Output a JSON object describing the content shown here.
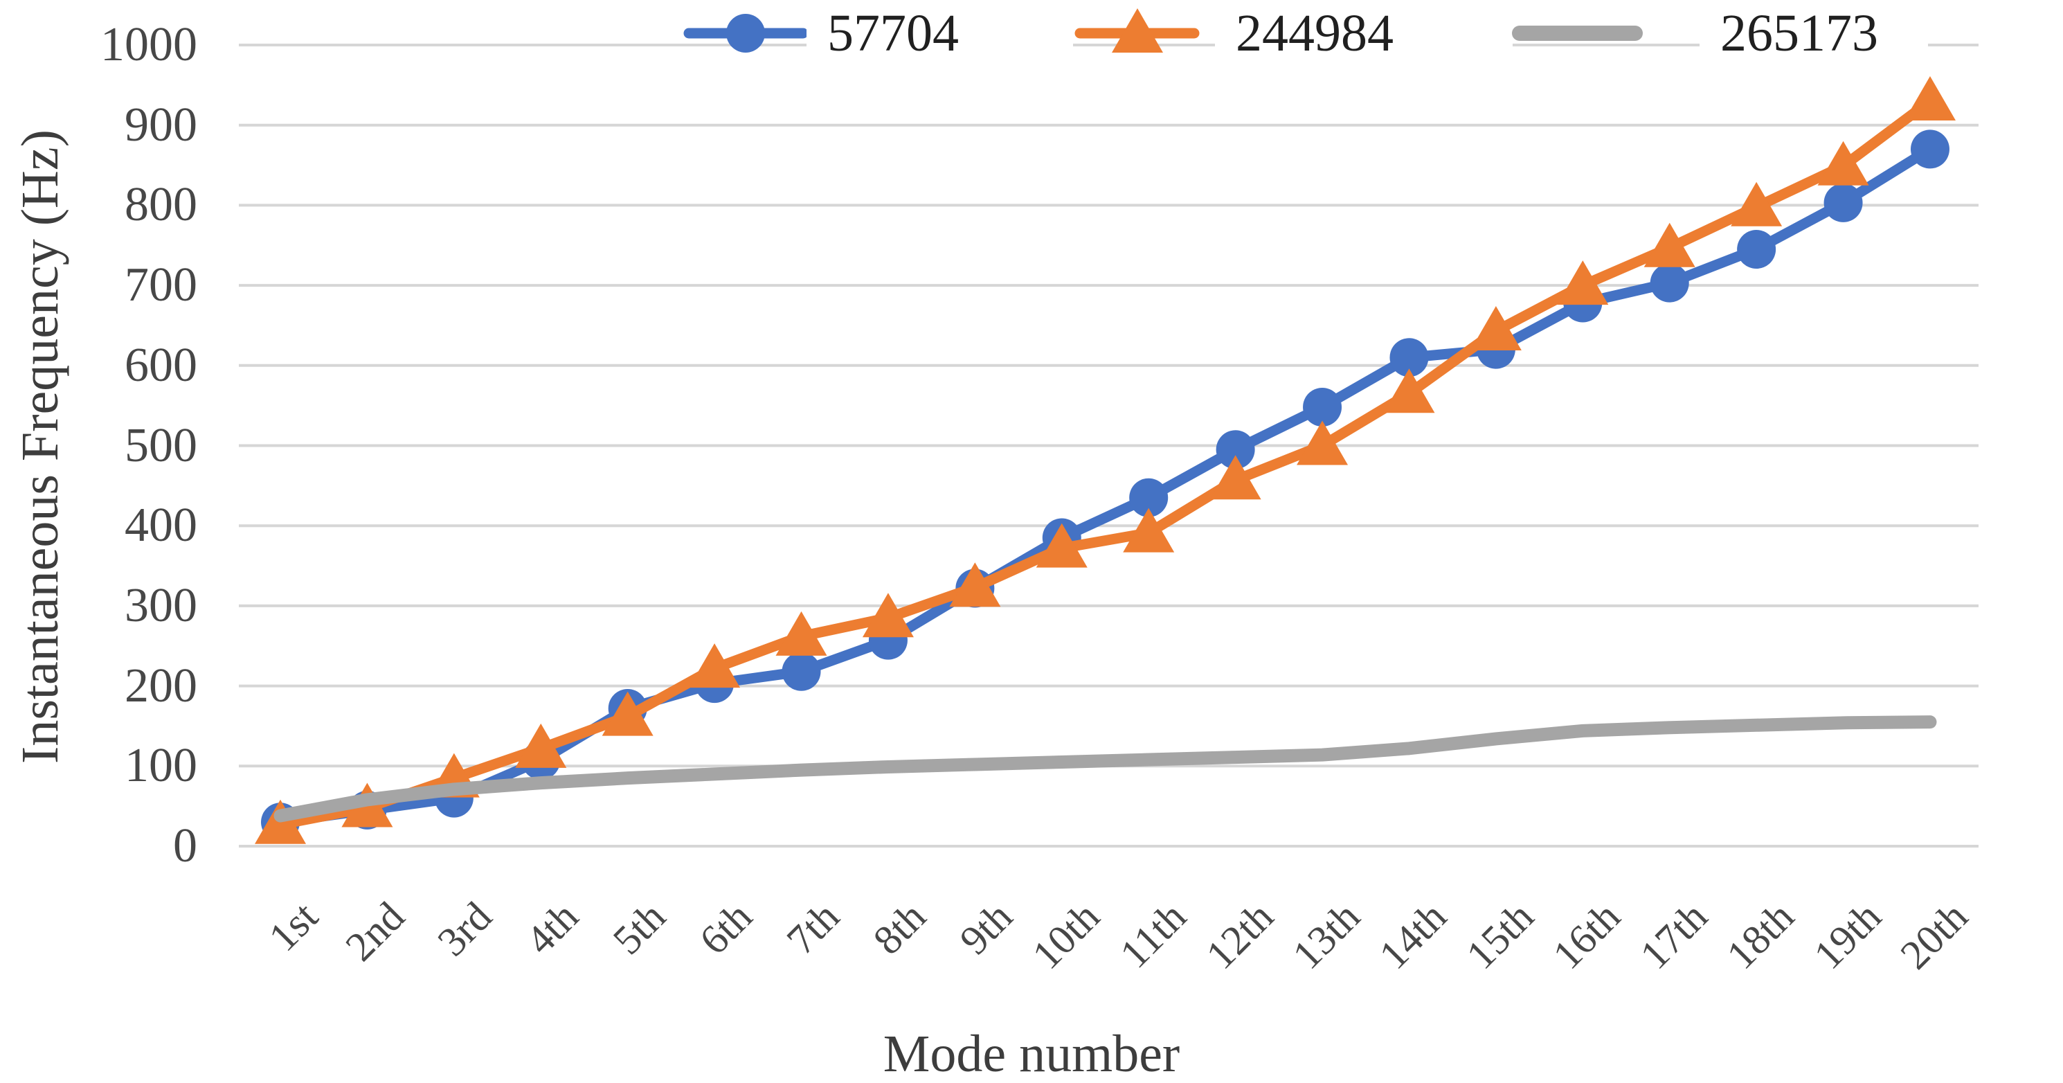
{
  "chart_data": {
    "type": "line",
    "title": "",
    "xlabel": "Mode number",
    "ylabel": "Instantaneous Frequency (Hz)",
    "categories": [
      "1st",
      "2nd",
      "3rd",
      "4th",
      "5th",
      "6th",
      "7th",
      "8th",
      "9th",
      "10th",
      "11th",
      "12th",
      "13th",
      "14th",
      "15th",
      "16th",
      "17th",
      "18th",
      "19th",
      "20th"
    ],
    "y_ticks": [
      "0",
      "100",
      "200",
      "300",
      "400",
      "500",
      "600",
      "700",
      "800",
      "900",
      "1000"
    ],
    "ylim": [
      0,
      1000
    ],
    "grid": "horizontal",
    "legend_position": "top",
    "series": [
      {
        "name": "57704",
        "color": "#4472C4",
        "marker": "circle",
        "values": [
          30,
          45,
          60,
          107,
          172,
          203,
          218,
          257,
          322,
          385,
          435,
          495,
          548,
          610,
          620,
          678,
          703,
          745,
          803,
          870
        ]
      },
      {
        "name": "244984",
        "color": "#ED7D31",
        "marker": "triangle",
        "values": [
          27,
          48,
          85,
          122,
          162,
          222,
          262,
          285,
          323,
          372,
          391,
          457,
          500,
          565,
          643,
          700,
          747,
          798,
          849,
          930
        ]
      },
      {
        "name": "265173",
        "color": "#A5A5A5",
        "marker": "none",
        "values": [
          38,
          58,
          71,
          79,
          85,
          90,
          95,
          99,
          102,
          105,
          108,
          111,
          114,
          122,
          134,
          144,
          148,
          151,
          154,
          155
        ]
      }
    ]
  },
  "colors": {
    "background": "#FFFFFF",
    "gridline": "#D6D6D6",
    "tick_text": "#474747",
    "title_text": "#3D3D3D",
    "legend_text": "#202020"
  }
}
